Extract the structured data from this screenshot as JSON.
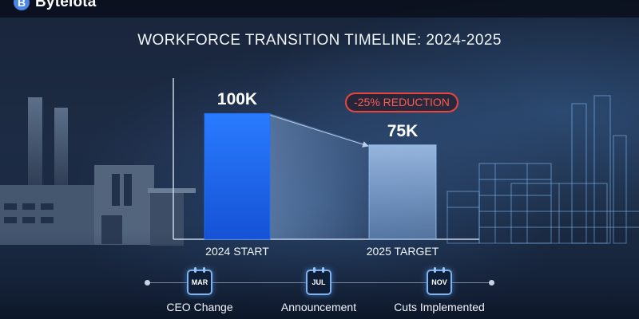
{
  "brand": {
    "name": "Bytelota",
    "icon": "bitcoin-b-icon"
  },
  "colors": {
    "bar_start": "#1f6fff",
    "bar_target": "#9cc3f3",
    "badge": "#e8453c",
    "background": "#18253b"
  },
  "chart_data": {
    "type": "bar",
    "title": "WORKFORCE TRANSITION TIMELINE: 2024-2025",
    "categories": [
      "2024 START",
      "2025 TARGET"
    ],
    "values": [
      100000,
      75000
    ],
    "value_labels": [
      "100K",
      "75K"
    ],
    "annotation": "-25% REDUCTION",
    "ylim": [
      0,
      130000
    ],
    "grid": false,
    "legend": "none"
  },
  "timeline": {
    "events": [
      {
        "month": "MAR",
        "label": "CEO Change"
      },
      {
        "month": "JUL",
        "label": "Announcement"
      },
      {
        "month": "NOV",
        "label": "Cuts Implemented"
      }
    ]
  }
}
